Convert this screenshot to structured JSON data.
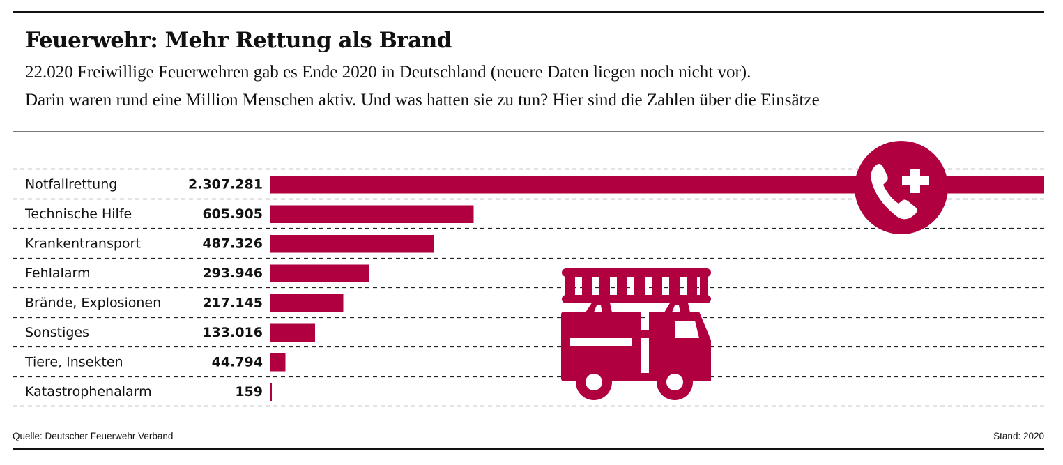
{
  "header": {
    "title": "Feuerwehr: Mehr Rettung als Brand",
    "subtitle_line1": "22.020 Freiwillige Feuerwehren gab es Ende 2020 in Deutschland (neuere Daten liegen noch nicht vor).",
    "subtitle_line2": "Darin waren rund eine Million Menschen aktiv. Und was hatten sie zu tun? Hier sind die Zahlen über die Einsätze"
  },
  "footer": {
    "source": "Quelle: Deutscher Feuerwehr Verband",
    "stand": "Stand: 2020"
  },
  "colors": {
    "bar": "#b0003f",
    "text": "#111111",
    "rule": "#111111",
    "dash": "#222222"
  },
  "icons": [
    "emergency-phone-icon",
    "fire-truck-icon"
  ],
  "chart_data": {
    "type": "bar",
    "orientation": "horizontal",
    "title": "Feuerwehr: Mehr Rettung als Brand",
    "xlabel": "",
    "ylabel": "",
    "categories": [
      "Notfallrettung",
      "Technische Hilfe",
      "Krankentransport",
      "Fehlalarm",
      "Brände, Explosionen",
      "Sonstiges",
      "Tiere, Insekten",
      "Katastrophenalarm"
    ],
    "values": [
      2307281,
      605905,
      487326,
      293946,
      217145,
      133016,
      44794,
      159
    ],
    "value_labels": [
      "2.307.281",
      "605.905",
      "487.326",
      "293.946",
      "217.145",
      "133.016",
      "44.794",
      "159"
    ],
    "xlim": [
      0,
      2307281
    ],
    "grid": "dashed row separators",
    "legend": "none"
  }
}
